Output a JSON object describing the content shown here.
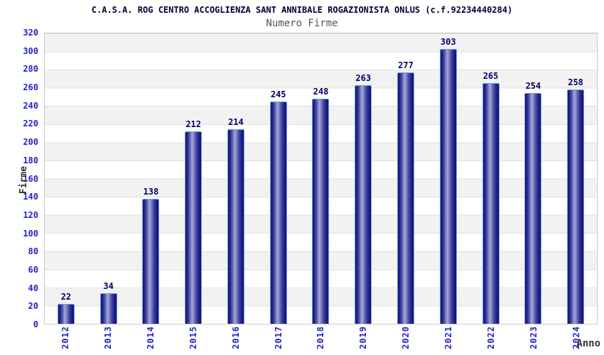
{
  "title": "C.A.S.A. ROG CENTRO ACCOGLIENZA SANT ANNIBALE ROGAZIONISTA ONLUS (c.f.92234440284)",
  "subtitle": "Numero Firme",
  "chart_data": {
    "type": "bar",
    "title": "C.A.S.A. ROG CENTRO ACCOGLIENZA SANT ANNIBALE ROGAZIONISTA ONLUS (c.f.92234440284)",
    "subtitle": "Numero Firme",
    "categories": [
      "2012",
      "2013",
      "2014",
      "2015",
      "2016",
      "2017",
      "2018",
      "2019",
      "2020",
      "2021",
      "2022",
      "2023",
      "2024"
    ],
    "values": [
      22,
      34,
      138,
      212,
      214,
      245,
      248,
      263,
      277,
      303,
      265,
      254,
      258
    ],
    "xlabel": "Anno",
    "ylabel": "Firme",
    "ylim": [
      0,
      320
    ],
    "ytick_step": 20,
    "grid": "horizontal-bands",
    "legend": "none"
  },
  "colors": {
    "bar_dark": "#15156f",
    "bar_light": "#a3a7d8",
    "bar_border": "#63a3e8",
    "tick_label": "#2222cc",
    "value_label": "#000066",
    "title_text": "#000033",
    "subtitle_text": "#555555",
    "band_gray": "#f2f2f2",
    "band_white": "#ffffff",
    "grid_line": "#dfdfdf",
    "plot_border": "#c9c9c9"
  }
}
